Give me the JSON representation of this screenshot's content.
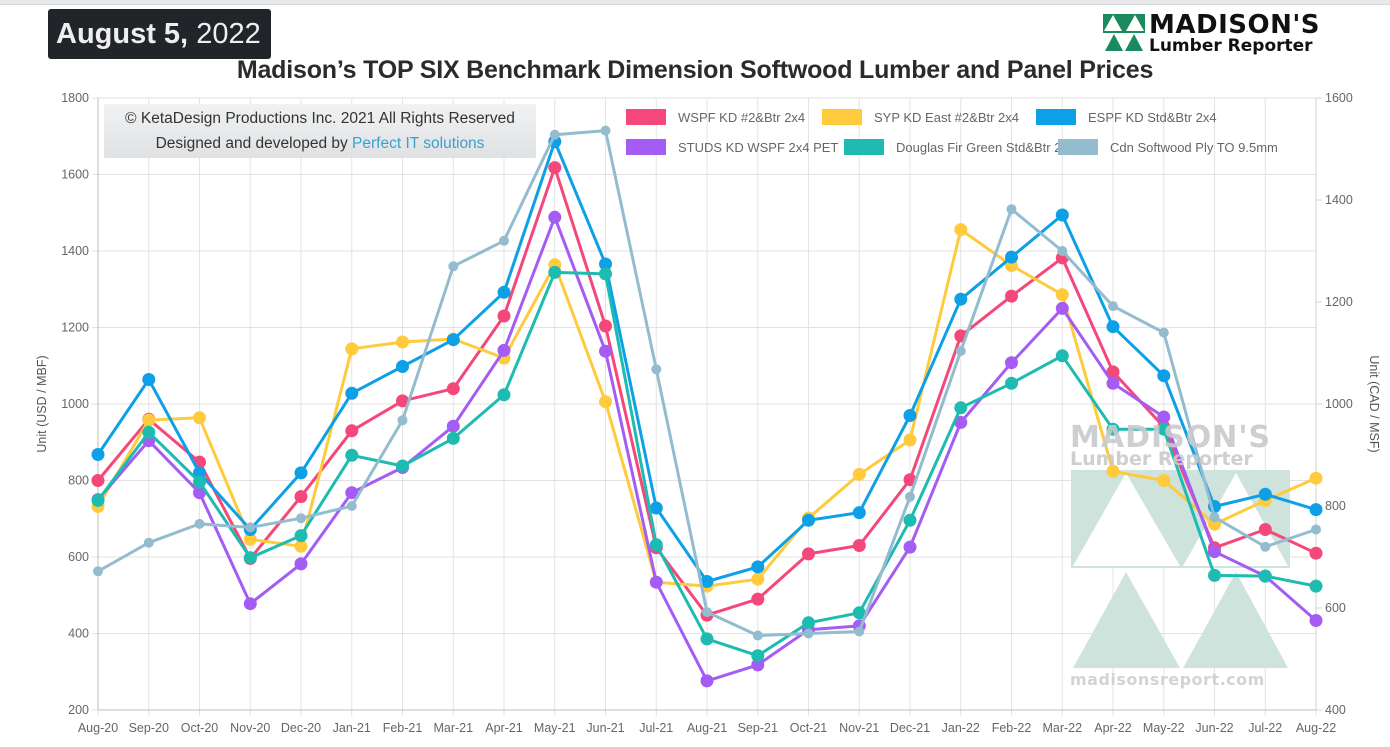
{
  "header": {
    "date_bold": "August 5,",
    "date_year": "2022",
    "brand_line1": "MADISON'S",
    "brand_line2": "Lumber Reporter"
  },
  "copyright": {
    "line1": "© KetaDesign Productions Inc. 2021 All Rights Reserved",
    "line2_prefix": "Designed and developed by ",
    "line2_link": "Perfect IT solutions"
  },
  "watermark": {
    "line1": "MADISON'S",
    "line2": "Lumber Reporter",
    "url": "madisonsreport.com"
  },
  "chart_data": {
    "type": "line",
    "title": "Madison’s TOP SIX Benchmark Dimension Softwood Lumber and Panel Prices",
    "xlabel": "",
    "ylabel": "Unit (USD / MBF)",
    "ylabel_right": "Unit (CAD / MSF)",
    "ylim": [
      200,
      1800
    ],
    "ylim_right": [
      400,
      1600
    ],
    "yticks": [
      200,
      400,
      600,
      800,
      1000,
      1200,
      1400,
      1600,
      1800
    ],
    "yticks_right": [
      400,
      600,
      800,
      1000,
      1200,
      1400,
      1600
    ],
    "grid": true,
    "legend_position": "top-right",
    "categories": [
      "Aug-20",
      "Sep-20",
      "Oct-20",
      "Nov-20",
      "Dec-20",
      "Jan-21",
      "Feb-21",
      "Mar-21",
      "Apr-21",
      "May-21",
      "Jun-21",
      "Jul-21",
      "Aug-21",
      "Sep-21",
      "Oct-21",
      "Nov-21",
      "Dec-21",
      "Jan-22",
      "Feb-22",
      "Mar-22",
      "Apr-22",
      "May-22",
      "Jun-22",
      "Jul-22",
      "Aug-22"
    ],
    "series": [
      {
        "name": "WSPF KD #2&Btr 2x4",
        "color": "#f5487a",
        "axis": "left",
        "values": [
          800,
          960,
          848,
          596,
          758,
          930,
          1008,
          1040,
          1230,
          1618,
          1204,
          624,
          448,
          490,
          608,
          630,
          802,
          1178,
          1282,
          1382,
          1084,
          940,
          624,
          672,
          610
        ]
      },
      {
        "name": "SYP KD East #2&Btr 2x4",
        "color": "#ffcb3c",
        "axis": "left",
        "values": [
          732,
          958,
          964,
          646,
          628,
          1144,
          1162,
          1170,
          1120,
          1364,
          1006,
          534,
          524,
          542,
          702,
          816,
          906,
          1456,
          1362,
          1286,
          824,
          800,
          686,
          748,
          806
        ]
      },
      {
        "name": "ESPF KD Std&Btr 2x4",
        "color": "#0ea0e6",
        "axis": "left",
        "values": [
          868,
          1064,
          820,
          672,
          820,
          1028,
          1098,
          1168,
          1292,
          1686,
          1366,
          728,
          536,
          574,
          696,
          716,
          970,
          1274,
          1384,
          1494,
          1202,
          1074,
          732,
          764,
          724
        ]
      },
      {
        "name": "STUDS KD WSPF 2x4 PET",
        "color": "#a45cf4",
        "axis": "left",
        "values": [
          750,
          904,
          768,
          478,
          582,
          768,
          834,
          942,
          1140,
          1488,
          1138,
          534,
          276,
          318,
          410,
          420,
          626,
          952,
          1108,
          1250,
          1054,
          966,
          614,
          550,
          434
        ]
      },
      {
        "name": "Douglas Fir Green Std&Btr 2x4",
        "color": "#1ebbb0",
        "axis": "left",
        "values": [
          748,
          926,
          796,
          598,
          656,
          866,
          838,
          910,
          1024,
          1344,
          1340,
          632,
          386,
          342,
          428,
          454,
          696,
          990,
          1054,
          1126,
          934,
          934,
          552,
          550,
          524
        ]
      },
      {
        "name": "Cdn Softwood Ply TO 9.5mm",
        "color": "#93bccf",
        "axis": "right",
        "values": [
          672,
          728,
          765,
          758,
          776,
          800,
          968,
          1270,
          1320,
          1528,
          1536,
          1068,
          592,
          546,
          550,
          554,
          818,
          1104,
          1382,
          1300,
          1192,
          1140,
          778,
          720,
          754
        ]
      }
    ]
  }
}
